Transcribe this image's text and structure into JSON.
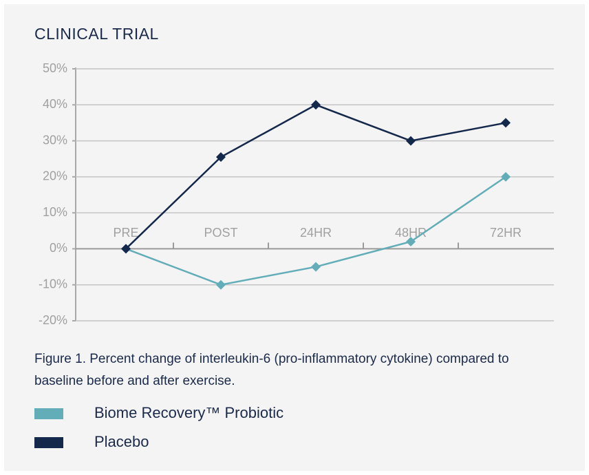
{
  "chart_data": {
    "type": "line",
    "title": "CLINICAL TRIAL",
    "caption": "Figure 1. Percent change of interleukin-6 (pro-inflammatory cytokine) compared to baseline before and after exercise.",
    "categories": [
      "PRE",
      "POST",
      "24HR",
      "48HR",
      "72HR"
    ],
    "series": [
      {
        "name": "Biome Recovery™ Probiotic",
        "color": "#62adb8",
        "values": [
          0,
          -10,
          -5,
          2,
          20
        ]
      },
      {
        "name": "Placebo",
        "color": "#14284b",
        "values": [
          0,
          25.5,
          40,
          30,
          35
        ]
      }
    ],
    "ylim": [
      -20,
      50
    ],
    "yticks": [
      {
        "value": -20,
        "label": "-20%"
      },
      {
        "value": -10,
        "label": "-10%"
      },
      {
        "value": 0,
        "label": "0%"
      },
      {
        "value": 10,
        "label": "10%"
      },
      {
        "value": 20,
        "label": "20%"
      },
      {
        "value": 30,
        "label": "30%"
      },
      {
        "value": 40,
        "label": "40%"
      },
      {
        "value": 50,
        "label": "50%"
      }
    ],
    "grid": true
  }
}
